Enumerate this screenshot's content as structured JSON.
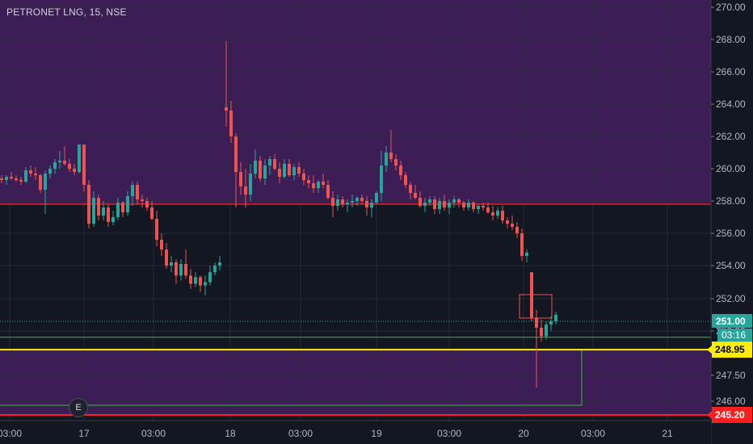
{
  "symbol": {
    "name": "PETRONET LNG",
    "interval": "15",
    "exchange": "NSE",
    "title_text": "PETRONET LNG, 15, NSE"
  },
  "price_axis": {
    "labels": [
      "270.00",
      "268.00",
      "266.00",
      "264.00",
      "262.00",
      "260.00",
      "258.00",
      "256.00",
      "254.00",
      "252.00",
      "250.00",
      "247.50",
      "246.00"
    ],
    "current_price": "251.00",
    "countdown": "03:16",
    "line_labels": [
      "248.95",
      "245.20"
    ]
  },
  "time_axis": {
    "labels": [
      "03:00",
      "17",
      "03:00",
      "18",
      "03:00",
      "19",
      "03:00",
      "20",
      "03:00",
      "21"
    ]
  },
  "event_marker": {
    "label": "E"
  },
  "colors": {
    "background": "#131722",
    "up_candle": "#26a69a",
    "down_candle": "#ef5350",
    "zone_fill": "#3d1d55",
    "line_red": "#ff1f1f",
    "line_yellow": "#ffee00",
    "line_green": "#2ec22e",
    "grid": "#2a2e39",
    "current_price_tag": "#26a69a"
  },
  "chart_data": {
    "type": "candlestick",
    "title": "PETRONET LNG, 15, NSE",
    "ylim": [
      245.2,
      270.2
    ],
    "horizontal_lines": [
      {
        "price": 257.8,
        "color": "red"
      },
      {
        "price": 248.95,
        "color": "yellow"
      },
      {
        "price": 245.2,
        "color": "red"
      },
      {
        "price": 249.65,
        "color": "green"
      }
    ],
    "candles": [
      [
        259.4,
        259.6,
        259.1,
        259.3
      ],
      [
        259.3,
        259.6,
        259.0,
        259.5
      ],
      [
        259.5,
        259.8,
        259.3,
        259.4
      ],
      [
        259.4,
        259.6,
        259.2,
        259.3
      ],
      [
        259.3,
        259.5,
        259.0,
        259.2
      ],
      [
        259.2,
        260.1,
        259.1,
        259.9
      ],
      [
        259.9,
        260.2,
        259.5,
        259.7
      ],
      [
        259.7,
        260.1,
        259.3,
        259.6
      ],
      [
        259.6,
        259.7,
        258.5,
        258.7
      ],
      [
        258.7,
        259.9,
        257.2,
        259.7
      ],
      [
        259.7,
        260.2,
        259.4,
        260.0
      ],
      [
        260.0,
        260.6,
        259.7,
        260.4
      ],
      [
        260.4,
        261.1,
        260.0,
        260.5
      ],
      [
        260.5,
        261.4,
        260.2,
        260.3
      ],
      [
        260.3,
        260.6,
        259.8,
        260.0
      ],
      [
        260.0,
        260.3,
        259.6,
        259.8
      ],
      [
        259.8,
        261.5,
        259.7,
        261.5
      ],
      [
        261.5,
        261.5,
        258.6,
        259.0
      ],
      [
        259.0,
        259.3,
        256.3,
        256.6
      ],
      [
        256.6,
        258.6,
        256.4,
        258.2
      ],
      [
        258.2,
        258.4,
        256.8,
        257.1
      ],
      [
        257.1,
        258.0,
        256.8,
        257.6
      ],
      [
        257.6,
        257.8,
        256.4,
        256.7
      ],
      [
        256.7,
        257.4,
        256.5,
        257.0
      ],
      [
        257.0,
        258.2,
        256.8,
        257.9
      ],
      [
        257.9,
        258.0,
        257.0,
        257.3
      ],
      [
        257.3,
        258.6,
        257.1,
        258.3
      ],
      [
        258.3,
        259.2,
        257.7,
        259.0
      ],
      [
        259.0,
        259.2,
        257.8,
        258.1
      ],
      [
        258.1,
        258.4,
        257.6,
        258.0
      ],
      [
        258.0,
        258.2,
        257.4,
        257.6
      ],
      [
        257.6,
        258.0,
        256.8,
        256.9
      ],
      [
        256.9,
        257.4,
        255.2,
        255.6
      ],
      [
        255.6,
        256.0,
        254.6,
        255.0
      ],
      [
        255.0,
        255.4,
        253.8,
        254.0
      ],
      [
        254.0,
        254.6,
        253.6,
        254.2
      ],
      [
        254.2,
        254.4,
        252.9,
        253.4
      ],
      [
        253.4,
        254.4,
        253.1,
        254.1
      ],
      [
        254.1,
        255.0,
        253.2,
        253.4
      ],
      [
        253.4,
        253.8,
        252.6,
        252.9
      ],
      [
        252.9,
        253.6,
        252.7,
        253.3
      ],
      [
        253.3,
        253.4,
        252.4,
        252.8
      ],
      [
        252.8,
        253.4,
        252.2,
        253.0
      ],
      [
        253.0,
        254.0,
        252.8,
        253.6
      ],
      [
        253.6,
        254.2,
        253.4,
        254.0
      ],
      [
        254.0,
        254.6,
        253.7,
        254.2
      ],
      [
        263.8,
        267.9,
        262.6,
        263.6
      ],
      [
        263.6,
        264.2,
        261.6,
        262.0
      ],
      [
        262.0,
        262.2,
        257.6,
        259.8
      ],
      [
        259.8,
        260.4,
        258.4,
        258.9
      ],
      [
        258.9,
        260.0,
        257.6,
        258.4
      ],
      [
        258.4,
        260.3,
        258.0,
        259.7
      ],
      [
        259.7,
        261.2,
        259.4,
        260.5
      ],
      [
        260.5,
        260.8,
        259.2,
        259.4
      ],
      [
        259.4,
        260.6,
        259.0,
        260.2
      ],
      [
        260.2,
        260.8,
        259.6,
        260.6
      ],
      [
        260.6,
        260.9,
        259.9,
        260.0
      ],
      [
        260.0,
        260.4,
        259.1,
        259.5
      ],
      [
        259.5,
        260.6,
        259.4,
        260.3
      ],
      [
        260.3,
        260.6,
        259.5,
        259.6
      ],
      [
        259.6,
        260.3,
        259.3,
        260.1
      ],
      [
        260.1,
        260.4,
        259.5,
        259.7
      ],
      [
        259.7,
        260.0,
        259.0,
        259.3
      ],
      [
        259.3,
        259.6,
        258.8,
        259.1
      ],
      [
        259.1,
        259.6,
        258.5,
        258.8
      ],
      [
        258.8,
        259.3,
        258.5,
        259.2
      ],
      [
        259.2,
        259.7,
        258.8,
        259.0
      ],
      [
        259.0,
        259.3,
        258.1,
        258.2
      ],
      [
        258.2,
        258.6,
        257.0,
        257.7
      ],
      [
        257.7,
        258.4,
        257.4,
        258.1
      ],
      [
        258.1,
        258.3,
        257.6,
        257.8
      ],
      [
        257.8,
        258.1,
        257.3,
        257.9
      ],
      [
        257.9,
        258.4,
        257.6,
        258.0
      ],
      [
        258.0,
        258.3,
        257.7,
        258.2
      ],
      [
        258.2,
        258.4,
        257.8,
        258.0
      ],
      [
        258.0,
        258.3,
        257.1,
        257.6
      ],
      [
        257.6,
        258.1,
        257.0,
        257.9
      ],
      [
        257.9,
        258.6,
        257.8,
        258.5
      ],
      [
        258.5,
        261.1,
        258.0,
        260.2
      ],
      [
        260.2,
        261.4,
        259.8,
        261.0
      ],
      [
        261.0,
        262.4,
        260.4,
        260.6
      ],
      [
        260.6,
        260.9,
        259.9,
        260.2
      ],
      [
        260.2,
        260.5,
        259.3,
        259.6
      ],
      [
        259.6,
        259.8,
        258.8,
        259.0
      ],
      [
        259.0,
        259.2,
        258.1,
        258.5
      ],
      [
        258.5,
        259.0,
        258.1,
        258.2
      ],
      [
        258.2,
        258.6,
        257.6,
        257.7
      ],
      [
        257.7,
        258.2,
        257.3,
        257.9
      ],
      [
        257.9,
        258.3,
        257.7,
        258.1
      ],
      [
        258.1,
        258.3,
        257.2,
        257.5
      ],
      [
        257.5,
        258.2,
        257.2,
        258.0
      ],
      [
        258.0,
        258.4,
        257.4,
        257.6
      ],
      [
        257.6,
        258.1,
        257.2,
        257.9
      ],
      [
        257.9,
        258.3,
        257.6,
        258.1
      ],
      [
        258.1,
        258.2,
        257.6,
        257.9
      ],
      [
        257.9,
        258.0,
        257.4,
        257.6
      ],
      [
        257.6,
        258.1,
        257.4,
        257.9
      ],
      [
        257.9,
        258.0,
        257.3,
        257.5
      ],
      [
        257.5,
        257.8,
        257.2,
        257.7
      ],
      [
        257.7,
        257.9,
        257.4,
        257.6
      ],
      [
        257.6,
        257.9,
        257.2,
        257.3
      ],
      [
        257.3,
        257.7,
        256.8,
        257.1
      ],
      [
        257.1,
        257.6,
        256.9,
        257.4
      ],
      [
        257.4,
        257.7,
        256.6,
        256.8
      ],
      [
        256.8,
        257.0,
        256.3,
        256.6
      ],
      [
        256.6,
        257.1,
        256.2,
        256.4
      ],
      [
        256.4,
        256.7,
        255.7,
        256.0
      ],
      [
        256.0,
        256.3,
        254.3,
        254.6
      ],
      [
        254.6,
        255.0,
        254.2,
        254.8
      ],
      [
        253.6,
        253.6,
        250.6,
        250.8
      ],
      [
        250.8,
        251.3,
        246.8,
        250.2
      ],
      [
        250.2,
        250.7,
        249.4,
        249.7
      ],
      [
        249.7,
        250.6,
        249.5,
        250.4
      ],
      [
        250.4,
        250.9,
        250.0,
        250.6
      ],
      [
        250.6,
        251.2,
        250.4,
        251.0
      ]
    ]
  }
}
